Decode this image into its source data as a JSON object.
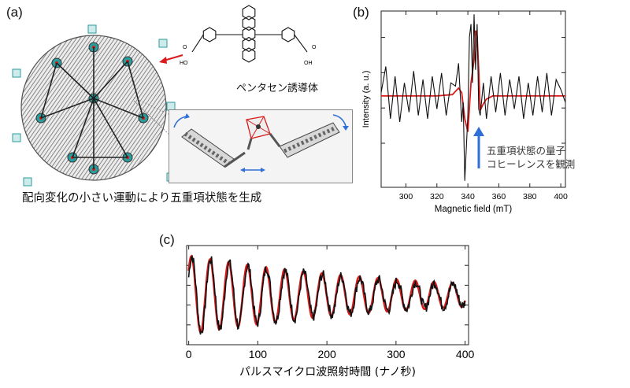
{
  "panel_a": {
    "label": "(a)",
    "molecule_label": "ペンタセン誘導体",
    "caption": "配向変化の小さい運動により五重項状態を生成"
  },
  "panel_b": {
    "label": "(b)",
    "annotation_line1": "五重項状態の量子",
    "annotation_line2": "コヒーレンスを観測",
    "chart_data": {
      "type": "line",
      "xlabel": "Magnetic field (mT)",
      "ylabel": "Intensity (a. u.)",
      "x_ticks": [
        300,
        320,
        340,
        360,
        380,
        400
      ],
      "xlim": [
        284,
        403
      ],
      "ylim": [
        -1.4,
        1.3
      ],
      "series": [
        {
          "color": "#d91b1b",
          "x": [
            284,
            300,
            320,
            330,
            334,
            336,
            338,
            340,
            342,
            344,
            345,
            346,
            347,
            348,
            350,
            352,
            356,
            360,
            380,
            403
          ],
          "y": [
            0,
            0,
            0,
            0.02,
            0.12,
            0.05,
            -0.35,
            -0.55,
            0.2,
            0.55,
            1.0,
            0.92,
            0.4,
            -0.22,
            -0.12,
            -0.05,
            0,
            0,
            0,
            0
          ]
        },
        {
          "color": "#111111",
          "x": [
            284,
            287,
            290,
            293,
            296,
            299,
            302,
            305,
            308,
            311,
            314,
            317,
            320,
            323,
            326,
            329,
            332,
            334,
            336,
            337,
            338,
            340,
            341,
            342,
            343,
            344,
            345,
            346,
            347,
            348,
            350,
            352,
            355,
            358,
            361,
            364,
            367,
            370,
            373,
            376,
            379,
            382,
            385,
            388,
            391,
            394,
            397,
            400,
            403
          ],
          "y": [
            0.05,
            0.45,
            -0.35,
            0.3,
            -0.4,
            0.2,
            -0.25,
            0.38,
            -0.3,
            0.25,
            -0.35,
            0.3,
            -0.2,
            0.35,
            -0.3,
            0.2,
            0.15,
            0.5,
            -0.4,
            -0.1,
            -1.3,
            -0.3,
            0.9,
            1.1,
            0.2,
            1.25,
            0.4,
            1.1,
            -0.2,
            -0.3,
            0.2,
            -0.35,
            0.3,
            -0.25,
            0.35,
            -0.3,
            0.25,
            -0.2,
            0.3,
            -0.35,
            0.2,
            -0.3,
            0.3,
            -0.25,
            0.35,
            -0.3,
            0.25,
            0.1,
            -0.1
          ]
        }
      ]
    }
  },
  "panel_c": {
    "label": "(c)",
    "chart_data": {
      "type": "line",
      "xlabel": "パルスマイクロ波照射時間 (ナノ秒)",
      "x_ticks": [
        0,
        100,
        200,
        300,
        400
      ],
      "xlim": [
        -3,
        405
      ],
      "ylim": [
        -1.1,
        1.1
      ],
      "series": [
        {
          "color": "#d91b1b",
          "kind": "damped-cosine",
          "amplitude": 0.95,
          "decay_ns": 330,
          "period_ns": 27,
          "phase": -0.9
        },
        {
          "color": "#111111",
          "kind": "damped-cosine-noisy",
          "amplitude": 0.95,
          "decay_ns": 300,
          "period_ns": 27,
          "phase": -1.1
        }
      ]
    }
  },
  "colors": {
    "red": "#d91b1b",
    "black": "#111111",
    "blue_arrow": "#2f6fd6",
    "inset_border": "#888888",
    "inset_bg": "#f3f3f3"
  }
}
